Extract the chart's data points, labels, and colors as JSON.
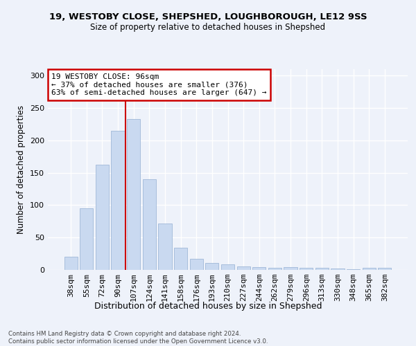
{
  "title1": "19, WESTOBY CLOSE, SHEPSHED, LOUGHBOROUGH, LE12 9SS",
  "title2": "Size of property relative to detached houses in Shepshed",
  "xlabel": "Distribution of detached houses by size in Shepshed",
  "ylabel": "Number of detached properties",
  "categories": [
    "38sqm",
    "55sqm",
    "72sqm",
    "90sqm",
    "107sqm",
    "124sqm",
    "141sqm",
    "158sqm",
    "176sqm",
    "193sqm",
    "210sqm",
    "227sqm",
    "244sqm",
    "262sqm",
    "279sqm",
    "296sqm",
    "313sqm",
    "330sqm",
    "348sqm",
    "365sqm",
    "382sqm"
  ],
  "values": [
    20,
    95,
    163,
    215,
    233,
    140,
    72,
    34,
    17,
    11,
    9,
    5,
    4,
    3,
    4,
    3,
    3,
    2,
    1,
    3,
    3
  ],
  "bar_color": "#c9d9f0",
  "bar_edge_color": "#a0b8d8",
  "vline_x_index": 3.5,
  "vline_color": "#cc0000",
  "annotation_line1": "19 WESTOBY CLOSE: 96sqm",
  "annotation_line2": "← 37% of detached houses are smaller (376)",
  "annotation_line3": "63% of semi-detached houses are larger (647) →",
  "annotation_box_color": "#cc0000",
  "background_color": "#eef2fa",
  "grid_color": "#ffffff",
  "footer_text": "Contains HM Land Registry data © Crown copyright and database right 2024.\nContains public sector information licensed under the Open Government Licence v3.0.",
  "ylim": [
    0,
    310
  ],
  "yticks": [
    0,
    50,
    100,
    150,
    200,
    250,
    300
  ]
}
